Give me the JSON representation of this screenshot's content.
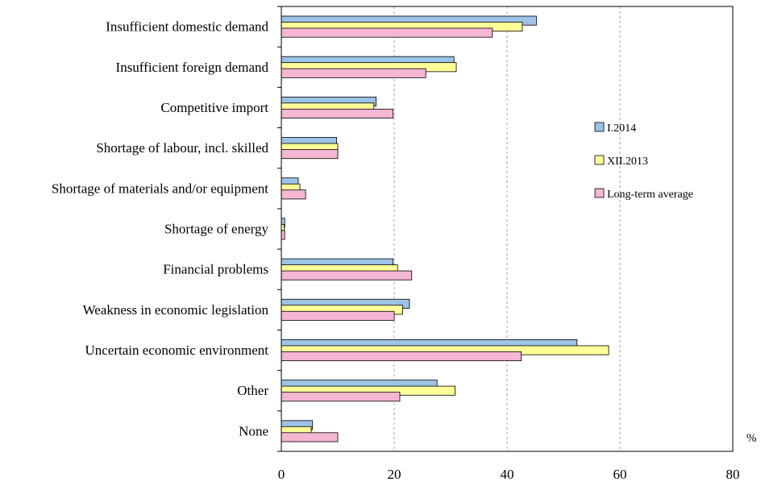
{
  "chart_data": {
    "type": "bar",
    "orientation": "horizontal",
    "title": "",
    "xlabel": "",
    "ylabel": "",
    "unit": "%",
    "xlim": [
      0,
      80
    ],
    "xticks": [
      0,
      20,
      40,
      60,
      80
    ],
    "grid": "vertical dashed",
    "legend_position": "right",
    "categories": [
      "Insufficient domestic demand",
      "Insufficient foreign demand",
      "Competitive import",
      "Shortage of labour, incl. skilled",
      "Shortage of materials and/or equipment",
      "Shortage of energy",
      "Financial problems",
      "Weakness in economic legislation",
      "Uncertain economic environment",
      "Other",
      "None"
    ],
    "series": [
      {
        "name": "I.2014",
        "color": "#9dc3e6",
        "values": [
          45.2,
          30.6,
          16.8,
          9.8,
          3.0,
          0.6,
          19.8,
          22.7,
          52.4,
          27.6,
          5.5
        ]
      },
      {
        "name": "XII.2013",
        "color": "#ffff99",
        "values": [
          42.7,
          31.0,
          16.4,
          10.0,
          3.3,
          0.5,
          20.6,
          21.5,
          58.0,
          30.8,
          5.3
        ]
      },
      {
        "name": "Long-term average",
        "color": "#f4b6d2",
        "values": [
          37.4,
          25.6,
          19.8,
          10.0,
          4.3,
          0.6,
          23.1,
          20.0,
          42.5,
          21.0,
          10.0
        ]
      }
    ]
  }
}
